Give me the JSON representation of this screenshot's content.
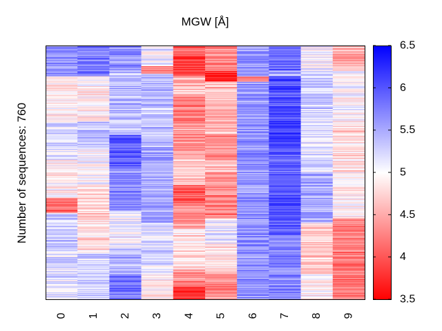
{
  "chart_data": {
    "type": "heatmap",
    "title": "MGW [Å]",
    "ylabel": "Number of sequences: 760",
    "xlabel": "",
    "n_rows": 760,
    "columns": [
      "0",
      "1",
      "2",
      "3",
      "4",
      "5",
      "6",
      "7",
      "8",
      "9"
    ],
    "colorbar": {
      "range": [
        3.5,
        6.5
      ],
      "ticks": [
        "3.5",
        "4",
        "4.5",
        "5",
        "5.5",
        "6",
        "6.5"
      ],
      "colors": {
        "low": "#ff0000",
        "mid": "#ffffff",
        "high": "#0000ff"
      }
    },
    "grid": false,
    "column_profiles": [
      {
        "column": "0",
        "segments": [
          [
            0.0,
            0.12,
            5.6
          ],
          [
            0.12,
            0.3,
            4.9
          ],
          [
            0.3,
            0.45,
            5.2
          ],
          [
            0.45,
            0.6,
            4.9
          ],
          [
            0.6,
            0.66,
            4.1
          ],
          [
            0.66,
            0.8,
            5.3
          ],
          [
            0.8,
            1.0,
            5.2
          ]
        ]
      },
      {
        "column": "1",
        "segments": [
          [
            0.0,
            0.12,
            5.8
          ],
          [
            0.12,
            0.3,
            4.9
          ],
          [
            0.3,
            0.4,
            5.4
          ],
          [
            0.4,
            0.55,
            5.0
          ],
          [
            0.55,
            0.68,
            4.7
          ],
          [
            0.68,
            0.82,
            4.8
          ],
          [
            0.82,
            1.0,
            5.3
          ]
        ]
      },
      {
        "column": "2",
        "segments": [
          [
            0.0,
            0.1,
            5.7
          ],
          [
            0.1,
            0.35,
            5.4
          ],
          [
            0.35,
            0.48,
            5.9
          ],
          [
            0.48,
            0.65,
            5.7
          ],
          [
            0.65,
            0.8,
            5.1
          ],
          [
            0.8,
            0.9,
            5.4
          ],
          [
            0.9,
            1.0,
            5.8
          ]
        ]
      },
      {
        "column": "3",
        "segments": [
          [
            0.0,
            0.08,
            5.1
          ],
          [
            0.08,
            0.11,
            4.3
          ],
          [
            0.11,
            0.4,
            5.4
          ],
          [
            0.4,
            0.7,
            5.5
          ],
          [
            0.7,
            0.9,
            5.2
          ],
          [
            0.9,
            1.0,
            4.9
          ]
        ]
      },
      {
        "column": "4",
        "segments": [
          [
            0.0,
            0.04,
            4.1
          ],
          [
            0.04,
            0.12,
            3.9
          ],
          [
            0.12,
            0.2,
            4.6
          ],
          [
            0.2,
            0.3,
            4.2
          ],
          [
            0.3,
            0.45,
            4.4
          ],
          [
            0.45,
            0.55,
            4.7
          ],
          [
            0.55,
            0.62,
            4.0
          ],
          [
            0.62,
            0.72,
            4.4
          ],
          [
            0.72,
            0.88,
            4.8
          ],
          [
            0.88,
            0.95,
            4.3
          ],
          [
            0.95,
            1.0,
            3.8
          ]
        ]
      },
      {
        "column": "5",
        "segments": [
          [
            0.0,
            0.1,
            4.3
          ],
          [
            0.1,
            0.14,
            3.7
          ],
          [
            0.14,
            0.35,
            4.6
          ],
          [
            0.35,
            0.45,
            4.3
          ],
          [
            0.45,
            0.5,
            4.7
          ],
          [
            0.5,
            0.68,
            4.3
          ],
          [
            0.68,
            0.78,
            5.1
          ],
          [
            0.78,
            0.9,
            4.8
          ],
          [
            0.9,
            1.0,
            4.3
          ]
        ]
      },
      {
        "column": "6",
        "segments": [
          [
            0.0,
            0.12,
            5.6
          ],
          [
            0.12,
            0.14,
            4.3
          ],
          [
            0.14,
            1.0,
            5.6
          ]
        ]
      },
      {
        "column": "7",
        "segments": [
          [
            0.0,
            0.1,
            5.9
          ],
          [
            0.1,
            0.12,
            5.4
          ],
          [
            0.12,
            0.3,
            6.0
          ],
          [
            0.3,
            0.4,
            6.1
          ],
          [
            0.4,
            0.75,
            6.0
          ],
          [
            0.75,
            1.0,
            5.7
          ]
        ]
      },
      {
        "column": "8",
        "segments": [
          [
            0.0,
            0.1,
            5.1
          ],
          [
            0.1,
            0.25,
            5.3
          ],
          [
            0.25,
            0.5,
            5.2
          ],
          [
            0.5,
            0.7,
            5.5
          ],
          [
            0.7,
            0.9,
            4.7
          ],
          [
            0.9,
            1.0,
            4.9
          ]
        ]
      },
      {
        "column": "9",
        "segments": [
          [
            0.0,
            0.1,
            4.5
          ],
          [
            0.1,
            0.3,
            5.0
          ],
          [
            0.3,
            0.5,
            4.8
          ],
          [
            0.5,
            0.68,
            4.9
          ],
          [
            0.68,
            0.8,
            4.3
          ],
          [
            0.8,
            1.0,
            4.2
          ]
        ]
      }
    ]
  }
}
